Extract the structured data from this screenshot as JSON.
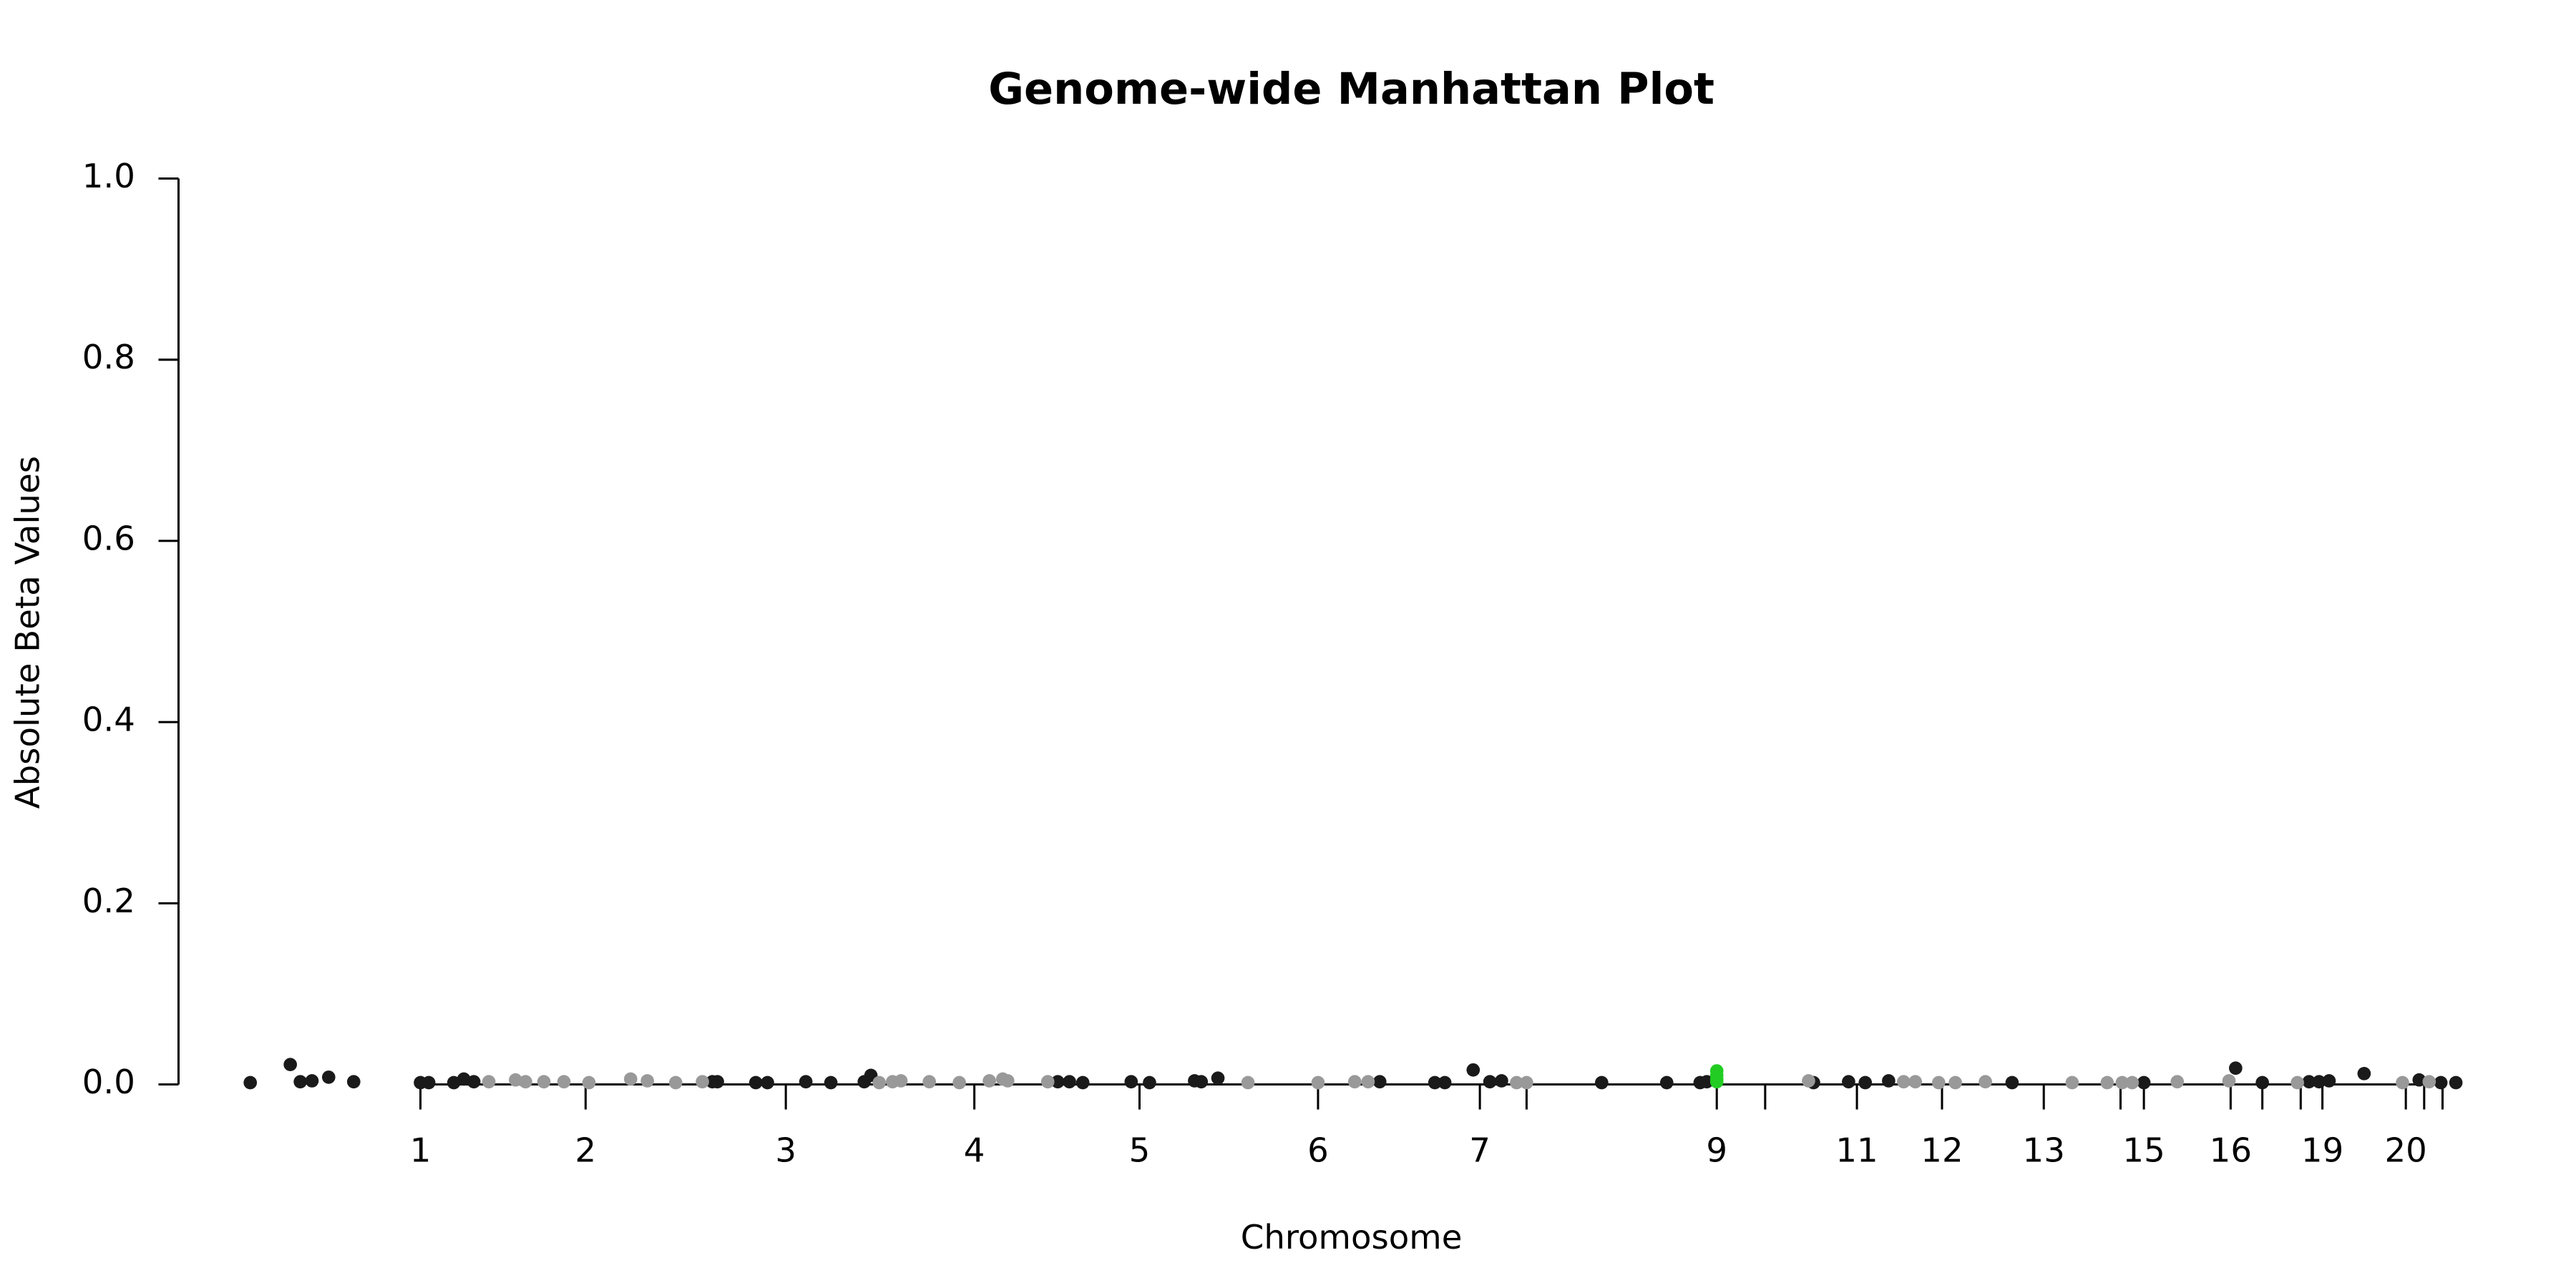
{
  "chart_data": {
    "type": "scatter",
    "title": "Genome-wide Manhattan Plot",
    "x_label": "Chromosome",
    "y_label": "Absolute Beta Values",
    "xlim": [
      107,
      1475
    ],
    "ylim": [
      0,
      1
    ],
    "yticks": [
      {
        "value": 0,
        "label": "0.0"
      },
      {
        "value": 0.2,
        "label": "0.2"
      },
      {
        "value": 0.4,
        "label": "0.4"
      },
      {
        "value": 0.6,
        "label": "0.6"
      },
      {
        "value": 0.8,
        "label": "0.8"
      },
      {
        "value": 1,
        "label": "1.0"
      }
    ],
    "xticks": [
      {
        "value": 252,
        "label": "1"
      },
      {
        "value": 351,
        "label": "2"
      },
      {
        "value": 471,
        "label": "3"
      },
      {
        "value": 584,
        "label": "4"
      },
      {
        "value": 683,
        "label": "5"
      },
      {
        "value": 790,
        "label": "6"
      },
      {
        "value": 887,
        "label": "7"
      },
      {
        "value": 915,
        "label": null
      },
      {
        "value": 1029,
        "label": "9"
      },
      {
        "value": 1058,
        "label": null
      },
      {
        "value": 1113,
        "label": "11"
      },
      {
        "value": 1164,
        "label": "12"
      },
      {
        "value": 1225,
        "label": "13"
      },
      {
        "value": 1271,
        "label": null
      },
      {
        "value": 1285,
        "label": "15"
      },
      {
        "value": 1337,
        "label": "16"
      },
      {
        "value": 1356,
        "label": null
      },
      {
        "value": 1379,
        "label": null
      },
      {
        "value": 1392,
        "label": "19"
      },
      {
        "value": 1442,
        "label": "20"
      },
      {
        "value": 1453,
        "label": null
      },
      {
        "value": 1464,
        "label": null
      }
    ],
    "series": [
      {
        "color": "#1a1a1a",
        "x": [
          150,
          174,
          180,
          187,
          197,
          212,
          252,
          257,
          272,
          278,
          284,
          427,
          430,
          453,
          460,
          483,
          498,
          518,
          522,
          634,
          641,
          649,
          678,
          689,
          716,
          720,
          730,
          827,
          860,
          866,
          883,
          893,
          900,
          960,
          999,
          1019,
          1023,
          1087,
          1108,
          1118,
          1132,
          1206,
          1285,
          1340,
          1356,
          1384,
          1390,
          1396,
          1417,
          1450,
          1463,
          1472
        ],
        "values": [
          0.002,
          0.022,
          0.003,
          0.004,
          0.008,
          0.003,
          0.002,
          0.002,
          0.002,
          0.006,
          0.003,
          0.003,
          0.003,
          0.002,
          0.002,
          0.003,
          0.002,
          0.003,
          0.01,
          0.003,
          0.003,
          0.002,
          0.003,
          0.002,
          0.004,
          0.003,
          0.007,
          0.003,
          0.002,
          0.002,
          0.016,
          0.003,
          0.004,
          0.002,
          0.002,
          0.002,
          0.003,
          0.002,
          0.003,
          0.002,
          0.004,
          0.002,
          0.002,
          0.018,
          0.002,
          0.003,
          0.003,
          0.004,
          0.012,
          0.005,
          0.002,
          0.002
        ]
      },
      {
        "color": "#999999",
        "x": [
          293,
          309,
          315,
          326,
          338,
          353,
          378,
          388,
          405,
          421,
          527,
          535,
          540,
          557,
          575,
          593,
          601,
          604,
          628,
          748,
          790,
          812,
          820,
          909,
          915,
          1084,
          1141,
          1148,
          1162,
          1172,
          1190,
          1242,
          1263,
          1272,
          1278,
          1305,
          1336,
          1377,
          1440,
          1456
        ],
        "values": [
          0.003,
          0.005,
          0.003,
          0.003,
          0.003,
          0.002,
          0.006,
          0.004,
          0.002,
          0.003,
          0.002,
          0.003,
          0.004,
          0.003,
          0.002,
          0.004,
          0.006,
          0.004,
          0.003,
          0.002,
          0.002,
          0.003,
          0.003,
          0.002,
          0.002,
          0.004,
          0.003,
          0.003,
          0.002,
          0.002,
          0.003,
          0.002,
          0.002,
          0.002,
          0.002,
          0.003,
          0.004,
          0.002,
          0.002,
          0.003
        ]
      },
      {
        "color": "#22cc22",
        "x": [
          1029,
          1029,
          1029,
          1029
        ],
        "values": [
          0.015,
          0.01,
          0.006,
          0.003
        ]
      }
    ]
  }
}
